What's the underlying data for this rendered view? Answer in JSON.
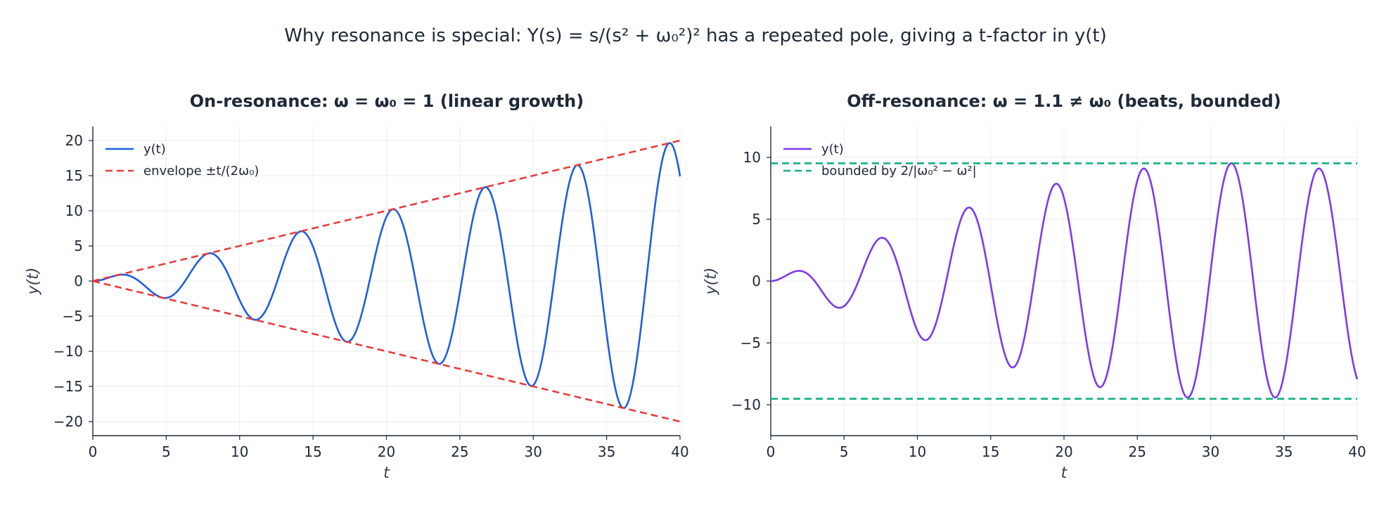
{
  "figure_title": "Why resonance is special: Y(s) = s/(s² + ω₀²)² has a repeated pole, giving a t-factor in y(t)",
  "chart_data": [
    {
      "type": "line",
      "title": "On-resonance: ω = ω₀ = 1  (linear growth)",
      "xlabel": "t",
      "ylabel": "y(t)",
      "xlim": [
        0,
        40
      ],
      "ylim": [
        -22,
        22
      ],
      "xticks": [
        0,
        5,
        10,
        15,
        20,
        25,
        30,
        35,
        40
      ],
      "yticks": [
        -20,
        -15,
        -10,
        -5,
        0,
        5,
        10,
        15,
        20
      ],
      "grid": true,
      "legend": "top-left",
      "series": [
        {
          "name": "y(t)",
          "formula": "t·sin(t)/2",
          "color": "#1f5fe0",
          "style": "solid"
        },
        {
          "name": "envelope ±t/(2ω₀)",
          "formula": "±t/2",
          "color": "#e53e3e",
          "style": "dashed"
        }
      ]
    },
    {
      "type": "line",
      "title": "Off-resonance: ω = 1.1 ≠ ω₀  (beats, bounded)",
      "xlabel": "t",
      "ylabel": "y(t)",
      "xlim": [
        0,
        40
      ],
      "ylim": [
        -12.5,
        12.5
      ],
      "xticks": [
        0,
        5,
        10,
        15,
        20,
        25,
        30,
        35,
        40
      ],
      "yticks": [
        -10,
        -5,
        0,
        5,
        10
      ],
      "grid": true,
      "legend": "top-left",
      "series": [
        {
          "name": "y(t)",
          "formula": "(cos(t) − cos(1.1t))/(1.1² − 1)",
          "color": "#7c3aed",
          "style": "solid"
        },
        {
          "name": "bounded by 2/|ω₀² − ω²|",
          "values": [
            9.52,
            -9.52
          ],
          "color": "#10b07f",
          "style": "dashed"
        }
      ]
    }
  ]
}
